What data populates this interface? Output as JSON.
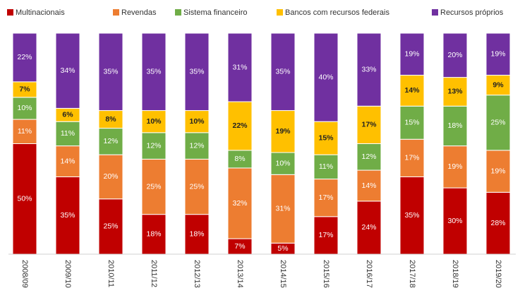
{
  "chart_data": {
    "type": "stacked_bar",
    "categories": [
      "2008/09",
      "2009/10",
      "2010/11",
      "2011/12",
      "2012/13",
      "2013/14",
      "2014/15",
      "2015/16",
      "2016/17",
      "2017/18",
      "2018/19",
      "2019/20"
    ],
    "series": [
      {
        "name": "Multinacionais",
        "color": "#c00000",
        "values": [
          50,
          35,
          25,
          18,
          18,
          7,
          5,
          17,
          24,
          35,
          30,
          28
        ],
        "value_labels": [
          "50%",
          "35%",
          "25%",
          "18%",
          "18%",
          "7%",
          "5%",
          "17%",
          "24%",
          "35%",
          "30%",
          "28%"
        ]
      },
      {
        "name": "Revendas",
        "color": "#ed7d31",
        "values": [
          11,
          14,
          20,
          25,
          25,
          32,
          31,
          17,
          14,
          17,
          19,
          19
        ],
        "value_labels": [
          "11%",
          "14%",
          "20%",
          "25%",
          "25%",
          "32%",
          "31%",
          "17%",
          "14%",
          "17%",
          "19%",
          "19%"
        ]
      },
      {
        "name": "Sistema financeiro",
        "color": "#70ad47",
        "values": [
          10,
          11,
          12,
          12,
          12,
          8,
          10,
          11,
          12,
          15,
          18,
          25
        ],
        "value_labels": [
          "10%",
          "11%",
          "12%",
          "12%",
          "12%",
          "8%",
          "10%",
          "11%",
          "12%",
          "15%",
          "18%",
          "25%"
        ]
      },
      {
        "name": "Bancos com recursos federais",
        "color": "#ffc000",
        "values": [
          7,
          6,
          8,
          10,
          10,
          22,
          19,
          15,
          17,
          14,
          13,
          9
        ],
        "value_labels": [
          "7%",
          "6%",
          "8%",
          "10%",
          "10%",
          "22%",
          "19%",
          "15%",
          "17%",
          "14%",
          "13%",
          "9%"
        ]
      },
      {
        "name": "Recursos próprios",
        "color": "#7030a0",
        "values": [
          22,
          34,
          35,
          35,
          35,
          31,
          35,
          40,
          33,
          19,
          20,
          19
        ],
        "value_labels": [
          "22%",
          "34%",
          "35%",
          "35%",
          "35%",
          "31%",
          "35%",
          "40%",
          "33%",
          "19%",
          "20%",
          "19%"
        ]
      }
    ],
    "legend": "top"
  }
}
